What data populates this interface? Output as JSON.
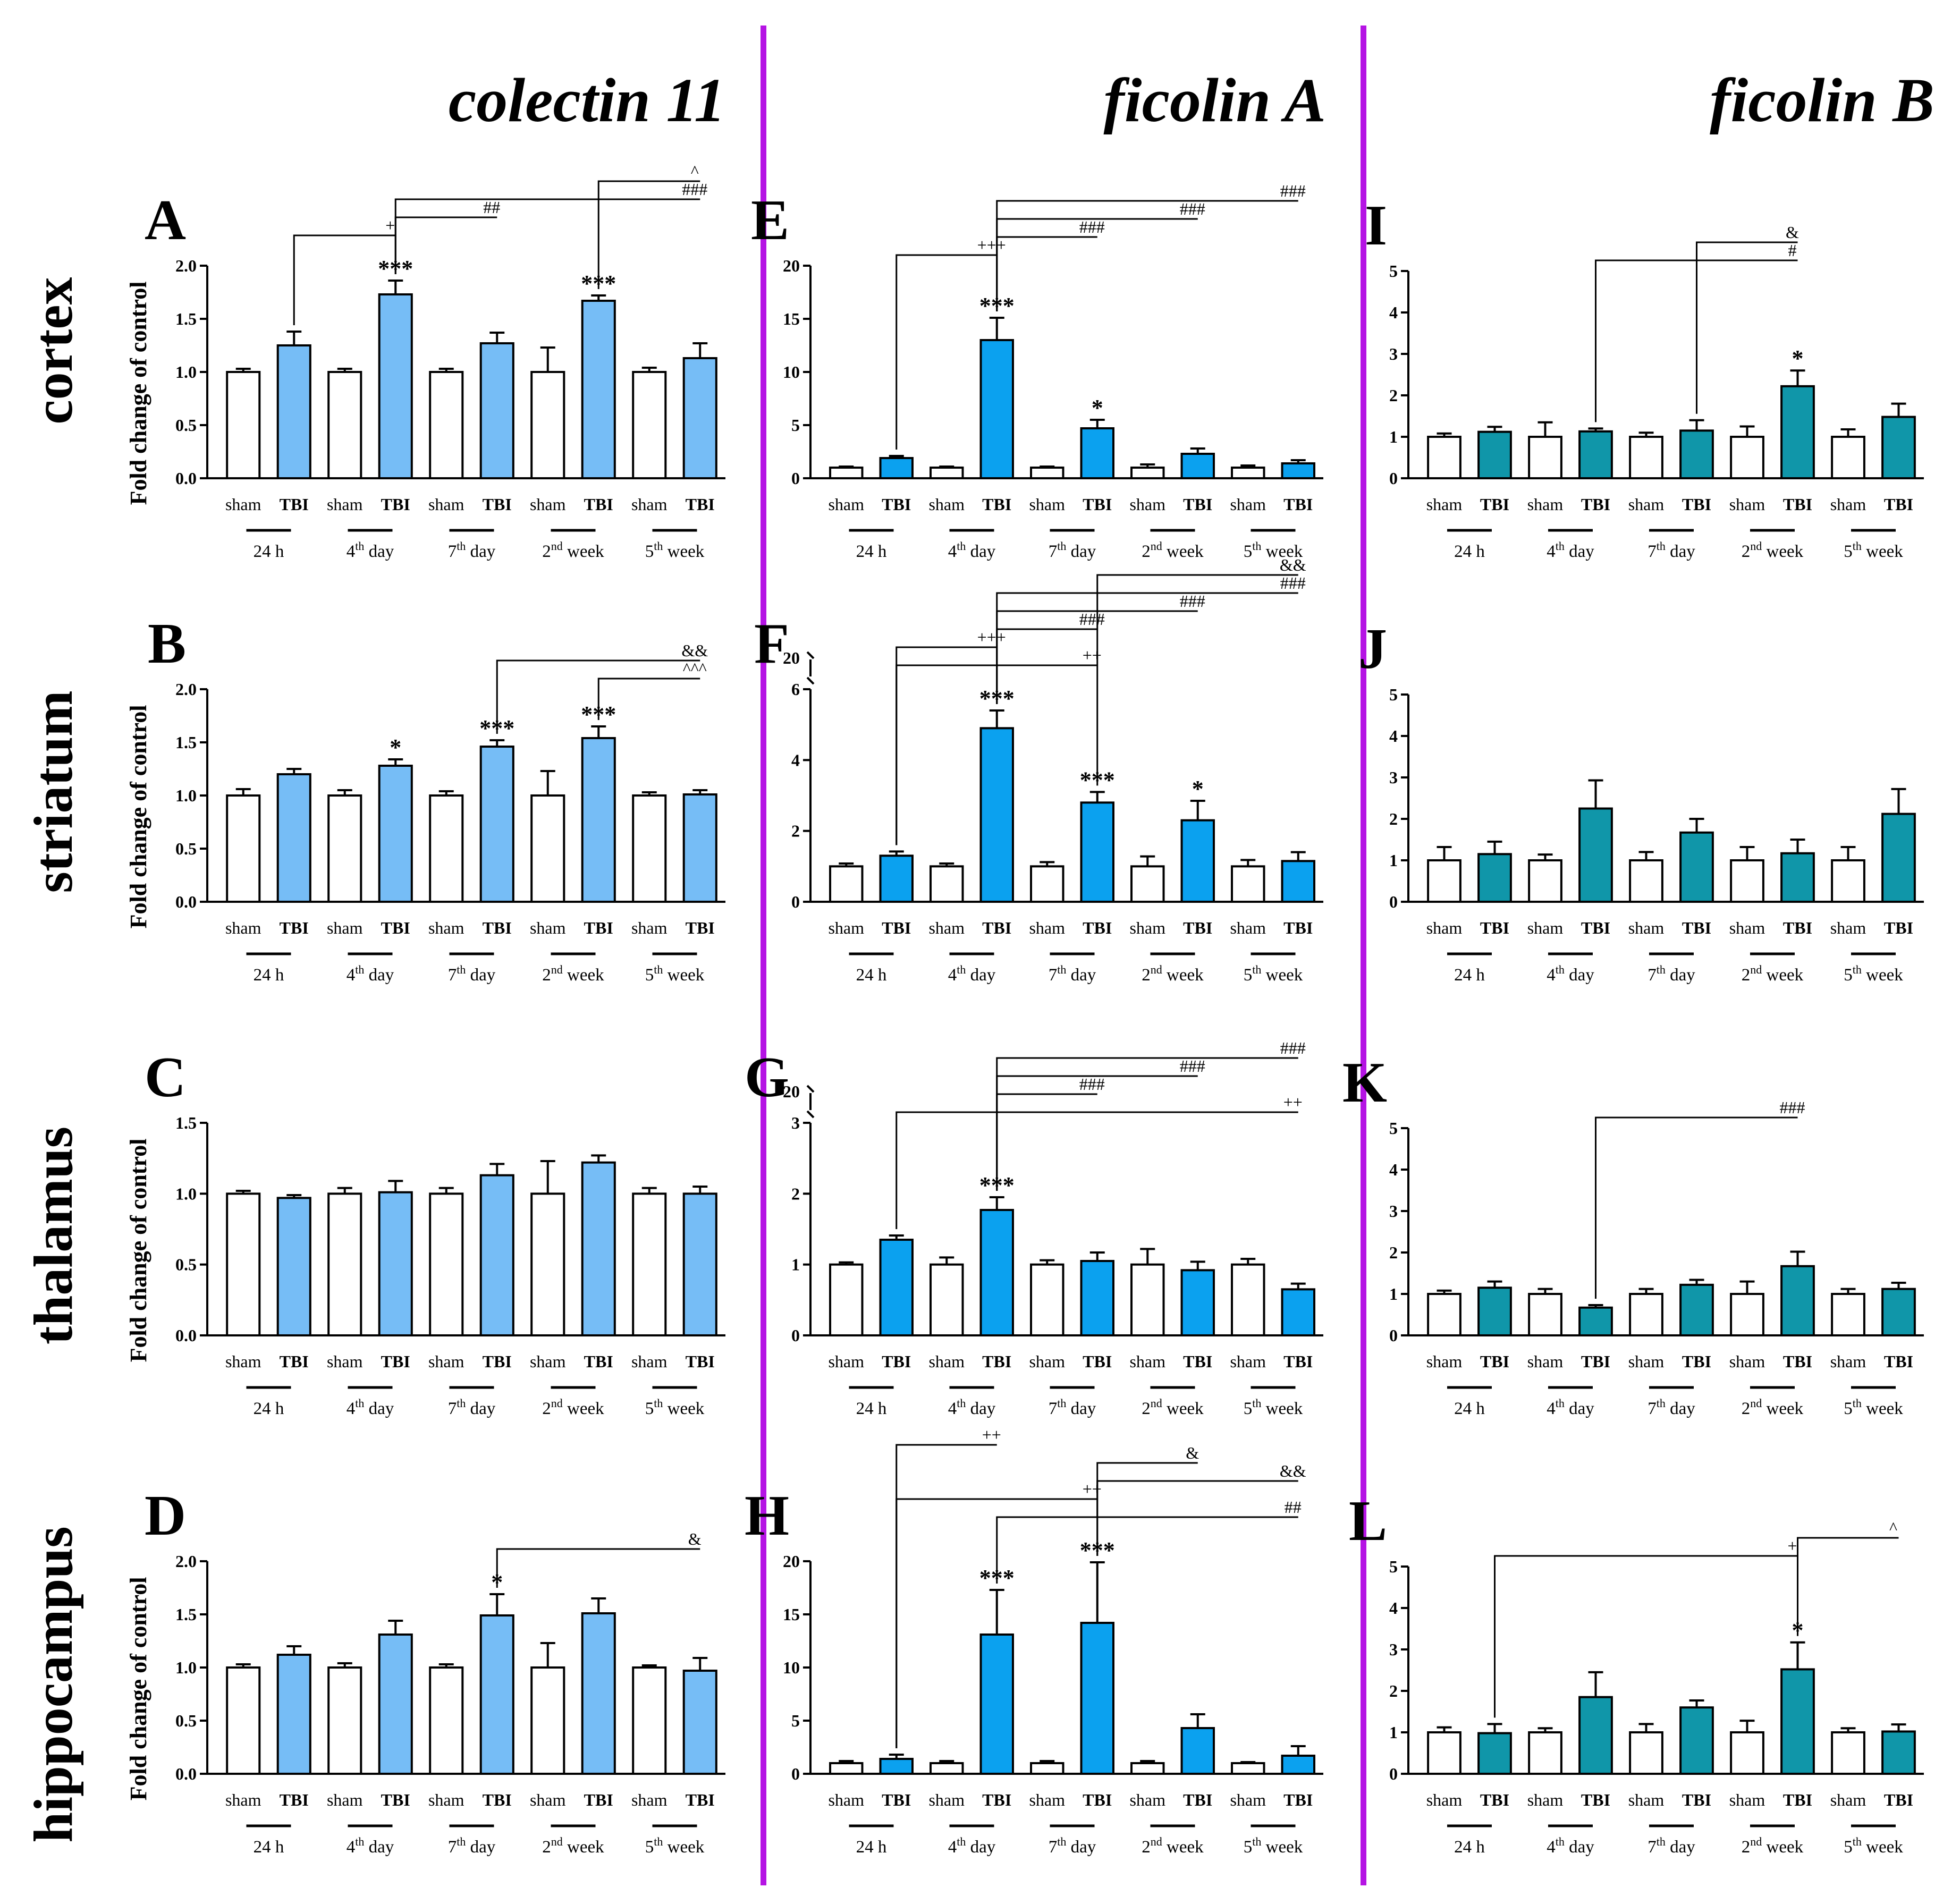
{
  "columns": [
    "colectin 11",
    "ficolin A",
    "ficolin B"
  ],
  "rows": [
    "cortex",
    "striatum",
    "thalamus",
    "hippocampus"
  ],
  "y_axis_label": "Fold change of control",
  "x_group_labels": [
    {
      "num": "24 h",
      "sup": "",
      "word": ""
    },
    {
      "num": "4",
      "sup": "th",
      "word": " day"
    },
    {
      "num": "7",
      "sup": "th",
      "word": " day"
    },
    {
      "num": "2",
      "sup": "nd",
      "word": " week"
    },
    {
      "num": "5",
      "sup": "th",
      "word": " week"
    }
  ],
  "bar_labels": [
    "sham",
    "TBI"
  ],
  "colors": {
    "sham": "#ffffff",
    "colectin": "#76bdf6",
    "ficolinA": "#0ba1ef",
    "ficolinB": "#1096a9",
    "divider": "#b514e4"
  },
  "chart_data": [
    {
      "type": "bar",
      "panel": "A",
      "gene": "colectin 11",
      "region": "cortex",
      "ylabel": "Fold change of control",
      "ylim": [
        0,
        2.0
      ],
      "yticks": [
        "0.0",
        "0.5",
        "1.0",
        "1.5",
        "2.0"
      ],
      "categories": [
        "24 h",
        "4th day",
        "7th day",
        "2nd week",
        "5th week"
      ],
      "series": [
        {
          "name": "sham",
          "values": [
            1.0,
            1.0,
            1.0,
            1.0,
            1.0
          ],
          "errors": [
            0.03,
            0.03,
            0.03,
            0.23,
            0.04
          ]
        },
        {
          "name": "TBI",
          "values": [
            1.25,
            1.73,
            1.27,
            1.67,
            1.13
          ],
          "errors": [
            0.13,
            0.13,
            0.1,
            0.05,
            0.14
          ]
        }
      ],
      "stars": [
        {
          "bar": 3,
          "text": "***"
        },
        {
          "bar": 7,
          "text": "***"
        }
      ],
      "brackets": [
        {
          "from": 1,
          "to": 3,
          "text": "+"
        },
        {
          "from": 3,
          "to": 5,
          "text": "##"
        },
        {
          "from": 3,
          "to": 9,
          "text": "###"
        },
        {
          "from": 7,
          "to": 9,
          "text": "^"
        }
      ]
    },
    {
      "type": "bar",
      "panel": "B",
      "gene": "colectin 11",
      "region": "striatum",
      "ylabel": "Fold change of control",
      "ylim": [
        0,
        2.0
      ],
      "yticks": [
        "0.0",
        "0.5",
        "1.0",
        "1.5",
        "2.0"
      ],
      "categories": [
        "24 h",
        "4th day",
        "7th day",
        "2nd week",
        "5th week"
      ],
      "series": [
        {
          "name": "sham",
          "values": [
            1.0,
            1.0,
            1.0,
            1.0,
            1.0
          ],
          "errors": [
            0.06,
            0.05,
            0.04,
            0.23,
            0.03
          ]
        },
        {
          "name": "TBI",
          "values": [
            1.2,
            1.28,
            1.46,
            1.54,
            1.01
          ],
          "errors": [
            0.05,
            0.06,
            0.06,
            0.11,
            0.04
          ]
        }
      ],
      "stars": [
        {
          "bar": 3,
          "text": "*"
        },
        {
          "bar": 5,
          "text": "***"
        },
        {
          "bar": 7,
          "text": "***"
        }
      ],
      "brackets": [
        {
          "from": 7,
          "to": 9,
          "text": "^^^"
        },
        {
          "from": 5,
          "to": 9,
          "text": "&&"
        }
      ]
    },
    {
      "type": "bar",
      "panel": "C",
      "gene": "colectin 11",
      "region": "thalamus",
      "ylabel": "Fold change of control",
      "ylim": [
        0,
        1.5
      ],
      "yticks": [
        "0.0",
        "0.5",
        "1.0",
        "1.5"
      ],
      "categories": [
        "24 h",
        "4th day",
        "7th day",
        "2nd week",
        "5th week"
      ],
      "series": [
        {
          "name": "sham",
          "values": [
            1.0,
            1.0,
            1.0,
            1.0,
            1.0
          ],
          "errors": [
            0.02,
            0.04,
            0.04,
            0.23,
            0.04
          ]
        },
        {
          "name": "TBI",
          "values": [
            0.97,
            1.01,
            1.13,
            1.22,
            1.0
          ],
          "errors": [
            0.02,
            0.08,
            0.08,
            0.05,
            0.05
          ]
        }
      ],
      "stars": [],
      "brackets": []
    },
    {
      "type": "bar",
      "panel": "D",
      "gene": "colectin 11",
      "region": "hippocampus",
      "ylabel": "Fold change of control",
      "ylim": [
        0,
        2.0
      ],
      "yticks": [
        "0.0",
        "0.5",
        "1.0",
        "1.5",
        "2.0"
      ],
      "categories": [
        "24 h",
        "4th day",
        "7th day",
        "2nd week",
        "5th week"
      ],
      "series": [
        {
          "name": "sham",
          "values": [
            1.0,
            1.0,
            1.0,
            1.0,
            1.0
          ],
          "errors": [
            0.03,
            0.04,
            0.03,
            0.23,
            0.02
          ]
        },
        {
          "name": "TBI",
          "values": [
            1.12,
            1.31,
            1.49,
            1.51,
            0.97
          ],
          "errors": [
            0.08,
            0.13,
            0.2,
            0.14,
            0.12
          ]
        }
      ],
      "stars": [
        {
          "bar": 5,
          "text": "*"
        }
      ],
      "brackets": [
        {
          "from": 5,
          "to": 9,
          "text": "&"
        }
      ]
    },
    {
      "type": "bar",
      "panel": "E",
      "gene": "ficolin A",
      "region": "cortex",
      "ylabel": "",
      "ylim": [
        0,
        20
      ],
      "yticks": [
        "0",
        "5",
        "10",
        "15",
        "20"
      ],
      "categories": [
        "24 h",
        "4th day",
        "7th day",
        "2nd week",
        "5th week"
      ],
      "series": [
        {
          "name": "sham",
          "values": [
            1.0,
            1.0,
            1.0,
            1.0,
            1.0
          ],
          "errors": [
            0.1,
            0.1,
            0.1,
            0.3,
            0.2
          ]
        },
        {
          "name": "TBI",
          "values": [
            1.9,
            13.0,
            4.7,
            2.3,
            1.4
          ],
          "errors": [
            0.2,
            2.1,
            0.8,
            0.5,
            0.3
          ]
        }
      ],
      "stars": [
        {
          "bar": 3,
          "text": "***"
        },
        {
          "bar": 5,
          "text": "*"
        }
      ],
      "brackets": [
        {
          "from": 1,
          "to": 3,
          "text": "+++"
        },
        {
          "from": 3,
          "to": 5,
          "text": "###"
        },
        {
          "from": 3,
          "to": 7,
          "text": "###"
        },
        {
          "from": 3,
          "to": 9,
          "text": "###"
        }
      ]
    },
    {
      "type": "bar",
      "panel": "F",
      "gene": "ficolin A",
      "region": "striatum",
      "ylabel": "",
      "ylim": [
        0,
        6
      ],
      "axis_break_top": "20",
      "yticks": [
        "0",
        "2",
        "4",
        "6"
      ],
      "categories": [
        "24 h",
        "4th day",
        "7th day",
        "2nd week",
        "5th week"
      ],
      "series": [
        {
          "name": "sham",
          "values": [
            1.0,
            1.0,
            1.0,
            1.0,
            1.0
          ],
          "errors": [
            0.08,
            0.08,
            0.12,
            0.28,
            0.18
          ]
        },
        {
          "name": "TBI",
          "values": [
            1.3,
            4.9,
            2.8,
            2.3,
            1.15
          ],
          "errors": [
            0.12,
            0.5,
            0.3,
            0.55,
            0.25
          ]
        }
      ],
      "stars": [
        {
          "bar": 3,
          "text": "***"
        },
        {
          "bar": 5,
          "text": "***"
        },
        {
          "bar": 7,
          "text": "*"
        }
      ],
      "brackets": [
        {
          "from": 1,
          "to": 5,
          "text": "++"
        },
        {
          "from": 1,
          "to": 3,
          "text": "+++"
        },
        {
          "from": 3,
          "to": 5,
          "text": "###"
        },
        {
          "from": 3,
          "to": 7,
          "text": "###"
        },
        {
          "from": 3,
          "to": 9,
          "text": "###"
        },
        {
          "from": 5,
          "to": 9,
          "text": "&&"
        }
      ]
    },
    {
      "type": "bar",
      "panel": "G",
      "gene": "ficolin A",
      "region": "thalamus",
      "ylabel": "",
      "ylim": [
        0,
        3
      ],
      "axis_break_top": "20",
      "yticks": [
        "0",
        "1",
        "2",
        "3"
      ],
      "categories": [
        "24 h",
        "4th day",
        "7th day",
        "2nd week",
        "5th week"
      ],
      "series": [
        {
          "name": "sham",
          "values": [
            1.0,
            1.0,
            1.0,
            1.0,
            1.0
          ],
          "errors": [
            0.03,
            0.1,
            0.06,
            0.22,
            0.08
          ]
        },
        {
          "name": "TBI",
          "values": [
            1.35,
            1.77,
            1.05,
            0.92,
            0.65
          ],
          "errors": [
            0.06,
            0.18,
            0.12,
            0.12,
            0.08
          ]
        }
      ],
      "stars": [
        {
          "bar": 3,
          "text": "***"
        }
      ],
      "brackets": [
        {
          "from": 1,
          "to": 9,
          "text": "++"
        },
        {
          "from": 3,
          "to": 5,
          "text": "###"
        },
        {
          "from": 3,
          "to": 7,
          "text": "###"
        },
        {
          "from": 3,
          "to": 9,
          "text": "###"
        }
      ]
    },
    {
      "type": "bar",
      "panel": "H",
      "gene": "ficolin A",
      "region": "hippocampus",
      "ylabel": "",
      "ylim": [
        0,
        20
      ],
      "yticks": [
        "0",
        "5",
        "10",
        "15",
        "20"
      ],
      "categories": [
        "24 h",
        "4th day",
        "7th day",
        "2nd week",
        "5th week"
      ],
      "series": [
        {
          "name": "sham",
          "values": [
            1.0,
            1.0,
            1.0,
            1.0,
            1.0
          ],
          "errors": [
            0.2,
            0.2,
            0.2,
            0.2,
            0.1
          ]
        },
        {
          "name": "TBI",
          "values": [
            1.4,
            13.1,
            14.2,
            4.3,
            1.7
          ],
          "errors": [
            0.4,
            4.2,
            5.7,
            1.3,
            0.9
          ]
        }
      ],
      "stars": [
        {
          "bar": 3,
          "text": "***"
        },
        {
          "bar": 5,
          "text": "***"
        }
      ],
      "brackets": [
        {
          "from": 3,
          "to": 9,
          "text": "##"
        },
        {
          "from": 1,
          "to": 5,
          "text": "++"
        },
        {
          "from": 5,
          "to": 9,
          "text": "&&"
        },
        {
          "from": 5,
          "to": 7,
          "text": "&"
        },
        {
          "from": 1,
          "to": 3,
          "text": "++"
        }
      ]
    },
    {
      "type": "bar",
      "panel": "I",
      "gene": "ficolin B",
      "region": "cortex",
      "ylabel": "",
      "ylim": [
        0,
        5
      ],
      "yticks": [
        "0",
        "1",
        "2",
        "3",
        "4",
        "5"
      ],
      "categories": [
        "24 h",
        "4th day",
        "7th day",
        "2nd week",
        "5th week"
      ],
      "series": [
        {
          "name": "sham",
          "values": [
            1.0,
            1.0,
            1.0,
            1.0,
            1.0
          ],
          "errors": [
            0.08,
            0.35,
            0.1,
            0.25,
            0.18
          ]
        },
        {
          "name": "TBI",
          "values": [
            1.12,
            1.13,
            1.15,
            2.22,
            1.48
          ],
          "errors": [
            0.12,
            0.07,
            0.25,
            0.38,
            0.32
          ]
        }
      ],
      "stars": [
        {
          "bar": 7,
          "text": "*"
        }
      ],
      "brackets": [
        {
          "from": 3,
          "to": 7,
          "text": "#"
        },
        {
          "from": 5,
          "to": 7,
          "text": "&"
        }
      ]
    },
    {
      "type": "bar",
      "panel": "J",
      "gene": "ficolin B",
      "region": "striatum",
      "ylabel": "",
      "ylim": [
        0,
        5
      ],
      "yticks": [
        "0",
        "1",
        "2",
        "3",
        "4",
        "5"
      ],
      "categories": [
        "24 h",
        "4th day",
        "7th day",
        "2nd week",
        "5th week"
      ],
      "series": [
        {
          "name": "sham",
          "values": [
            1.0,
            1.0,
            1.0,
            1.0,
            1.0
          ],
          "errors": [
            0.32,
            0.14,
            0.2,
            0.32,
            0.32
          ]
        },
        {
          "name": "TBI",
          "values": [
            1.15,
            2.25,
            1.67,
            1.17,
            2.12
          ],
          "errors": [
            0.3,
            0.68,
            0.33,
            0.33,
            0.6
          ]
        }
      ],
      "stars": [],
      "brackets": []
    },
    {
      "type": "bar",
      "panel": "K",
      "gene": "ficolin B",
      "region": "thalamus",
      "ylabel": "",
      "ylim": [
        0,
        5
      ],
      "yticks": [
        "0",
        "1",
        "2",
        "3",
        "4",
        "5"
      ],
      "categories": [
        "24 h",
        "4th day",
        "7th day",
        "2nd week",
        "5th week"
      ],
      "series": [
        {
          "name": "sham",
          "values": [
            1.0,
            1.0,
            1.0,
            1.0,
            1.0
          ],
          "errors": [
            0.08,
            0.12,
            0.12,
            0.3,
            0.12
          ]
        },
        {
          "name": "TBI",
          "values": [
            1.15,
            0.67,
            1.22,
            1.67,
            1.12
          ],
          "errors": [
            0.15,
            0.06,
            0.12,
            0.35,
            0.15
          ]
        }
      ],
      "stars": [],
      "brackets": [
        {
          "from": 3,
          "to": 7,
          "text": "###"
        }
      ]
    },
    {
      "type": "bar",
      "panel": "L",
      "gene": "ficolin B",
      "region": "hippocampus",
      "ylabel": "",
      "ylim": [
        0,
        5
      ],
      "yticks": [
        "0",
        "1",
        "2",
        "3",
        "4",
        "5"
      ],
      "categories": [
        "24 h",
        "4th day",
        "7th day",
        "2nd week",
        "5th week"
      ],
      "series": [
        {
          "name": "sham",
          "values": [
            1.0,
            1.0,
            1.0,
            1.0,
            1.0
          ],
          "errors": [
            0.12,
            0.1,
            0.2,
            0.28,
            0.1
          ]
        },
        {
          "name": "TBI",
          "values": [
            0.98,
            1.85,
            1.6,
            2.52,
            1.02
          ],
          "errors": [
            0.22,
            0.6,
            0.17,
            0.65,
            0.17
          ]
        }
      ],
      "stars": [
        {
          "bar": 7,
          "text": "*"
        }
      ],
      "brackets": [
        {
          "from": 1,
          "to": 7,
          "text": "+"
        },
        {
          "from": 7,
          "to": 9,
          "text": "^"
        }
      ]
    }
  ]
}
